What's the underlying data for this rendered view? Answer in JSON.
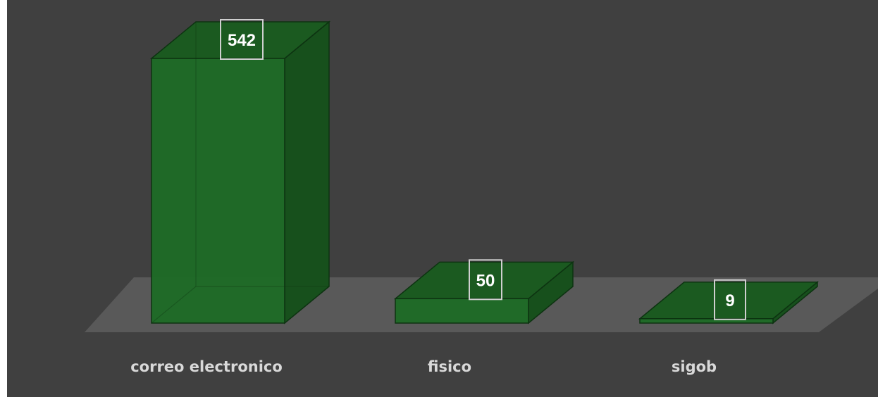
{
  "chart_data": {
    "type": "bar",
    "categories": [
      "correo electronico",
      "fisico",
      "sigob"
    ],
    "values": [
      542,
      50,
      9
    ],
    "value_labels": [
      "542",
      "50",
      "9"
    ],
    "title": "",
    "xlabel": "",
    "ylabel": "",
    "grid": false,
    "legend": "none",
    "style": "3d",
    "colors": {
      "background": "#404040",
      "floor": "#595959",
      "bar_front": "#1e6b26",
      "bar_top": "#1b5a20",
      "bar_side": "#17501c",
      "bar_edge": "#0d3311",
      "label_border": "#cfcfcf",
      "category_text": "#d9d9d9",
      "value_text": "#ffffff"
    }
  }
}
